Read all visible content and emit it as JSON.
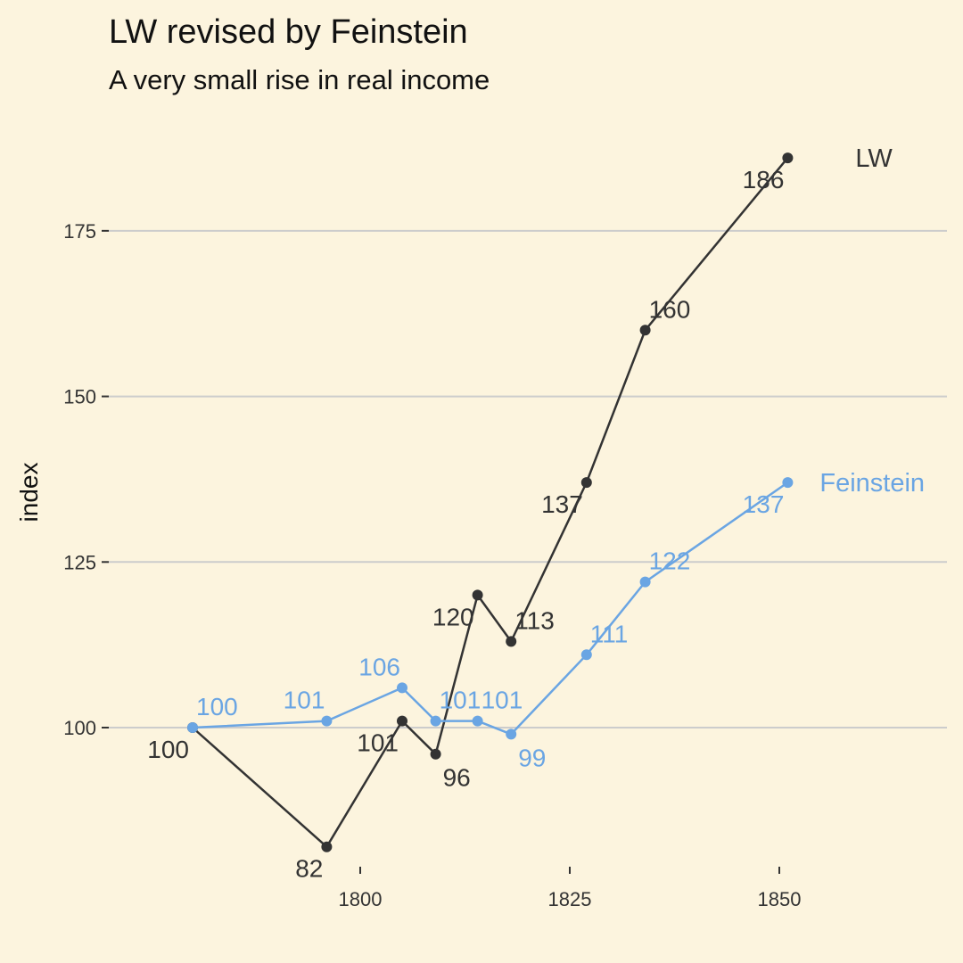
{
  "chart_data": {
    "type": "line",
    "title": "LW revised by Feinstein",
    "subtitle": "A very small rise in real income",
    "xlabel": "",
    "ylabel": "index",
    "xlim": [
      1770,
      1870
    ],
    "ylim": [
      79,
      191
    ],
    "x_ticks": [
      1800,
      1825,
      1850
    ],
    "y_ticks": [
      100,
      125,
      150,
      175
    ],
    "grid": "horizontal major lines only",
    "legend": "direct labels at right end of lines",
    "series": [
      {
        "name": "LW",
        "color": "#333333",
        "points": [
          {
            "x": 1780,
            "y": 100,
            "label": "100",
            "pos": "below-left"
          },
          {
            "x": 1796,
            "y": 82,
            "label": "82",
            "pos": "below-left"
          },
          {
            "x": 1805,
            "y": 101,
            "label": "101",
            "pos": "below-left"
          },
          {
            "x": 1809,
            "y": 96,
            "label": "96",
            "pos": "below-right"
          },
          {
            "x": 1814,
            "y": 120,
            "label": "120",
            "pos": "below-left"
          },
          {
            "x": 1818,
            "y": 113,
            "label": "113",
            "pos": "above-right"
          },
          {
            "x": 1827,
            "y": 137,
            "label": "137",
            "pos": "below-left"
          },
          {
            "x": 1834,
            "y": 160,
            "label": "160",
            "pos": "above-right"
          },
          {
            "x": 1851,
            "y": 186,
            "label": "186",
            "pos": "below-left"
          }
        ]
      },
      {
        "name": "Feinstein",
        "color": "#6aa5e3",
        "points": [
          {
            "x": 1780,
            "y": 100,
            "label": "100",
            "pos": "above-right"
          },
          {
            "x": 1796,
            "y": 101,
            "label": "101",
            "pos": "above-left"
          },
          {
            "x": 1805,
            "y": 106,
            "label": "106",
            "pos": "above-left"
          },
          {
            "x": 1809,
            "y": 101,
            "label": "101",
            "pos": "above-right"
          },
          {
            "x": 1814,
            "y": 101,
            "label": "101",
            "pos": "above-right"
          },
          {
            "x": 1818,
            "y": 99,
            "label": "99",
            "pos": "below-right"
          },
          {
            "x": 1827,
            "y": 111,
            "label": "111",
            "pos": "above-right"
          },
          {
            "x": 1834,
            "y": 122,
            "label": "122",
            "pos": "above-right"
          },
          {
            "x": 1851,
            "y": 137,
            "label": "137",
            "pos": "below-left"
          }
        ]
      }
    ]
  },
  "colors": {
    "background": "#fcf4de",
    "grid": "#cccccc"
  }
}
